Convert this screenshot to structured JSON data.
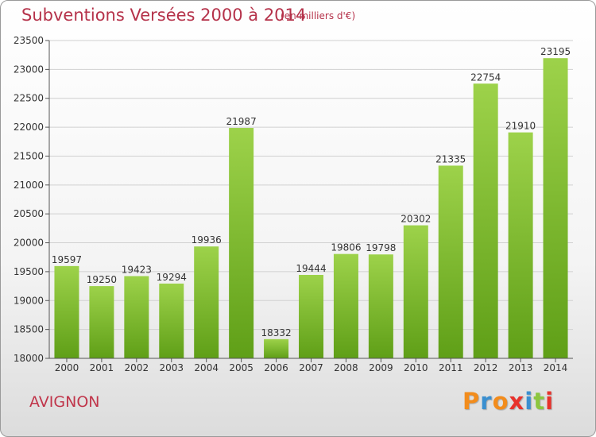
{
  "header": {
    "title": "Subventions Versées 2000 à 2014",
    "unit": "(en milliers d'€)"
  },
  "footer": {
    "city": "AVIGNON",
    "logo": {
      "letters": [
        "P",
        "r",
        "o",
        "x",
        "i",
        "t",
        "i"
      ],
      "colors": [
        "#f28c1c",
        "#3a8fd0",
        "#f28c1c",
        "#e8322c",
        "#3a8fd0",
        "#8cc63f",
        "#e8322c"
      ]
    }
  },
  "chart_data": {
    "type": "bar",
    "categories": [
      "2000",
      "2001",
      "2002",
      "2003",
      "2004",
      "2005",
      "2006",
      "2007",
      "2008",
      "2009",
      "2010",
      "2011",
      "2012",
      "2013",
      "2014"
    ],
    "values": [
      19597,
      19250,
      19423,
      19294,
      19936,
      21987,
      18332,
      19444,
      19806,
      19798,
      20302,
      21335,
      22754,
      21910,
      23195
    ],
    "ylim": [
      18000,
      23500
    ],
    "yticks": [
      18000,
      18500,
      19000,
      19500,
      20000,
      20500,
      21000,
      21500,
      22000,
      22500,
      23000,
      23500
    ],
    "grid": true,
    "bar_color_top": "#9dd24a",
    "bar_color_bottom": "#5f9f17",
    "title": "Subventions Versées 2000 à 2014",
    "xlabel": "",
    "ylabel": ""
  }
}
